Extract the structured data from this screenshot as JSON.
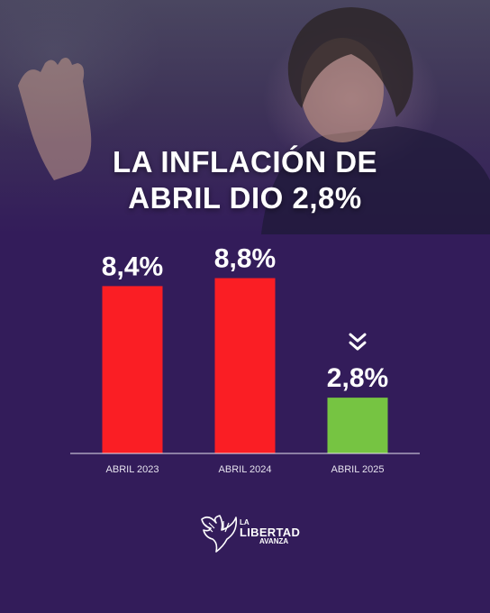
{
  "headline": {
    "line1": "LA INFLACIÓN DE",
    "line2": "ABRIL DIO 2,8%"
  },
  "chart_data": {
    "type": "bar",
    "categories": [
      "ABRIL 2023",
      "ABRIL 2024",
      "ABRIL 2025"
    ],
    "values": [
      8.4,
      8.8,
      2.8
    ],
    "value_labels": [
      "8,4%",
      "8,8%",
      "2,8%"
    ],
    "bar_colors": [
      "#fa1e24",
      "#fa1e24",
      "#76c442"
    ],
    "ylim": [
      0,
      10
    ],
    "grid": false,
    "title": "",
    "xlabel": "",
    "ylabel": ""
  },
  "logo": {
    "la": "LA",
    "libertad": "LIBERTAD",
    "avanza": "AVANZA"
  },
  "colors": {
    "background": "#331c5a",
    "text": "#ffffff",
    "decrease_marker": "chevron-double-down-icon"
  }
}
